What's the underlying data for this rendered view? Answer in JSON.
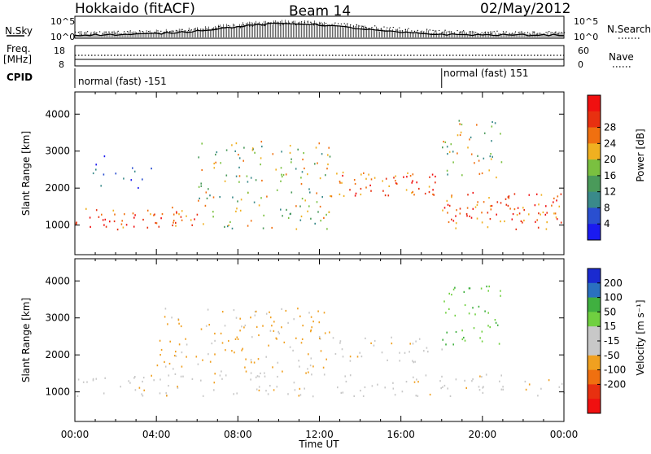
{
  "header": {
    "station": "Hokkaido (fitACF)",
    "beam": "Beam 14",
    "date": "02/May/2012"
  },
  "colors": {
    "power_scale": [
      "#1a1af0",
      "#2a4fd0",
      "#3a8a8a",
      "#4a9a5a",
      "#7ac040",
      "#f0b020",
      "#f07010",
      "#e83010",
      "#f01010"
    ],
    "velocity_scale": [
      "#1a2ad0",
      "#2a70c0",
      "#40b040",
      "#70d040",
      "#c8c8c8",
      "#c8c8c8",
      "#f0a020",
      "#f07010",
      "#e83010",
      "#f01010"
    ]
  },
  "top_panels": {
    "nsky_label": "N.Sky",
    "nsearch_label": "N.Search",
    "nsky_ticks": [
      "10^5",
      "10^0"
    ],
    "nsearch_ticks": [
      "10^5",
      "10^0"
    ],
    "freq_label_1": "Freq.",
    "freq_label_2": "[MHz]",
    "freq_ticks": [
      "18",
      "8"
    ],
    "nave_label": "Nave",
    "nave_ticks": [
      "60",
      "0"
    ],
    "cpid_label": "CPID",
    "cpid_1": "normal (fast) -151",
    "cpid_2": "normal (fast) 151",
    "cpid_switch_hour": 18
  },
  "chart_data": [
    {
      "type": "heatmap",
      "title": "",
      "quantity": "Power",
      "xlabel": "",
      "ylabel": "Slant Range [km]",
      "x_range_hours": [
        0,
        24
      ],
      "ylim": [
        200,
        4600
      ],
      "yticks": [
        1000,
        2000,
        3000,
        4000
      ],
      "colorbar_label": "Power [dB]",
      "colorbar_ticks": [
        4,
        8,
        12,
        16,
        20,
        24,
        28
      ],
      "scatter_bands": [
        {
          "from_hour": 0,
          "to_hour": 6,
          "range_low_km": 900,
          "range_high_km": 1500,
          "level": "strong"
        },
        {
          "from_hour": 0,
          "to_hour": 4,
          "range_low_km": 2000,
          "range_high_km": 2900,
          "level": "weak"
        },
        {
          "from_hour": 6,
          "to_hour": 12.5,
          "range_low_km": 900,
          "range_high_km": 1500,
          "level": "medium"
        },
        {
          "from_hour": 6,
          "to_hour": 12.5,
          "range_low_km": 1500,
          "range_high_km": 3300,
          "level": "medium"
        },
        {
          "from_hour": 12.5,
          "to_hour": 18,
          "range_low_km": 1800,
          "range_high_km": 2500,
          "level": "strong"
        },
        {
          "from_hour": 18,
          "to_hour": 24,
          "range_low_km": 900,
          "range_high_km": 1900,
          "level": "strong"
        },
        {
          "from_hour": 18,
          "to_hour": 21,
          "range_low_km": 2300,
          "range_high_km": 3900,
          "level": "medium"
        }
      ]
    },
    {
      "type": "heatmap",
      "title": "",
      "quantity": "Velocity",
      "xlabel": "Time UT",
      "ylabel": "Slant Range [km]",
      "x_range_hours": [
        0,
        24
      ],
      "xticks": [
        "00:00",
        "04:00",
        "08:00",
        "12:00",
        "16:00",
        "20:00",
        "00:00"
      ],
      "ylim": [
        200,
        4600
      ],
      "yticks": [
        1000,
        2000,
        3000,
        4000
      ],
      "colorbar_label": "Velocity [m s⁻¹]",
      "colorbar_ticks": [
        200,
        100,
        50,
        15,
        -15,
        -50,
        -100,
        -200
      ],
      "scatter_bands": [
        {
          "from_hour": 0,
          "to_hour": 24,
          "range_low_km": 900,
          "range_high_km": 1500,
          "level": "ground"
        },
        {
          "from_hour": 4,
          "to_hour": 12.5,
          "range_low_km": 1500,
          "range_high_km": 3300,
          "level": "negative"
        },
        {
          "from_hour": 12.5,
          "to_hour": 18,
          "range_low_km": 1800,
          "range_high_km": 2500,
          "level": "ground"
        },
        {
          "from_hour": 18,
          "to_hour": 21,
          "range_low_km": 2300,
          "range_high_km": 3900,
          "level": "positive"
        }
      ]
    }
  ]
}
